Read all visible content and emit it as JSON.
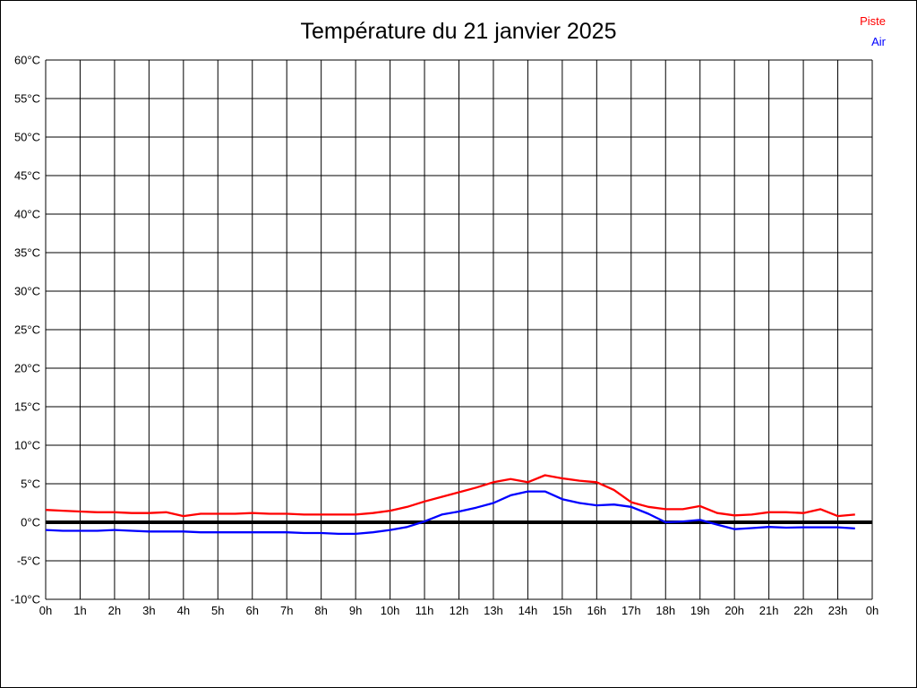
{
  "page": {
    "background": "#ffffff",
    "border_color": "#000000"
  },
  "title": "Température du 21 janvier 2025",
  "legend": {
    "position": "top-right",
    "items": [
      {
        "label": "Piste",
        "color": "#ff0000"
      },
      {
        "label": "Air",
        "color": "#0000ff"
      }
    ]
  },
  "chart_data": {
    "type": "line",
    "title": "Température du 21 janvier 2025",
    "xlabel": "",
    "ylabel": "",
    "x_unit": "hours",
    "y_unit": "°C",
    "xlim": [
      0,
      24
    ],
    "ylim": [
      -10,
      60
    ],
    "y_tick_step": 5,
    "grid": true,
    "grid_color": "#000000",
    "axis_color": "#000000",
    "zero_line": {
      "value": 0,
      "color": "#000000",
      "width": 4
    },
    "legend_position": "top-right",
    "x_tick_labels": [
      "0h",
      "1h",
      "2h",
      "3h",
      "4h",
      "5h",
      "6h",
      "7h",
      "8h",
      "9h",
      "10h",
      "11h",
      "12h",
      "13h",
      "14h",
      "15h",
      "16h",
      "17h",
      "18h",
      "19h",
      "20h",
      "21h",
      "22h",
      "23h",
      "0h"
    ],
    "y_tick_labels": [
      "60°C",
      "55°C",
      "50°C",
      "45°C",
      "40°C",
      "35°C",
      "30°C",
      "25°C",
      "20°C",
      "15°C",
      "10°C",
      "5°C",
      "0°C",
      "-5°C",
      "-10°C"
    ],
    "series": [
      {
        "name": "Piste",
        "color": "#ff0000",
        "line_width": 2.3,
        "x": [
          0,
          0.5,
          1,
          1.5,
          2,
          2.5,
          3,
          3.5,
          4,
          4.5,
          5,
          5.5,
          6,
          6.5,
          7,
          7.5,
          8,
          8.5,
          9,
          9.5,
          10,
          10.5,
          11,
          11.5,
          12,
          12.5,
          13,
          13.5,
          14,
          14.5,
          15,
          15.5,
          16,
          16.5,
          17,
          17.5,
          18,
          18.5,
          19,
          19.5,
          20,
          20.5,
          21,
          21.5,
          22,
          22.5,
          23,
          23.5
        ],
        "values": [
          1.6,
          1.5,
          1.4,
          1.3,
          1.3,
          1.2,
          1.2,
          1.3,
          0.8,
          1.1,
          1.1,
          1.1,
          1.2,
          1.1,
          1.1,
          1.0,
          1.0,
          1.0,
          1.0,
          1.2,
          1.5,
          2.0,
          2.7,
          3.3,
          3.9,
          4.5,
          5.2,
          5.6,
          5.2,
          6.1,
          5.7,
          5.4,
          5.2,
          4.2,
          2.6,
          2.0,
          1.7,
          1.7,
          2.1,
          1.2,
          0.9,
          1.0,
          1.3,
          1.3,
          1.2,
          1.7,
          0.8,
          1.0
        ]
      },
      {
        "name": "Air",
        "color": "#0000ff",
        "line_width": 2.3,
        "x": [
          0,
          0.5,
          1,
          1.5,
          2,
          2.5,
          3,
          3.5,
          4,
          4.5,
          5,
          5.5,
          6,
          6.5,
          7,
          7.5,
          8,
          8.5,
          9,
          9.5,
          10,
          10.5,
          11,
          11.5,
          12,
          12.5,
          13,
          13.5,
          14,
          14.5,
          15,
          15.5,
          16,
          16.5,
          17,
          17.5,
          18,
          18.5,
          19,
          19.5,
          20,
          20.5,
          21,
          21.5,
          22,
          22.5,
          23,
          23.5
        ],
        "values": [
          -1.0,
          -1.1,
          -1.1,
          -1.1,
          -1.0,
          -1.1,
          -1.2,
          -1.2,
          -1.2,
          -1.3,
          -1.3,
          -1.3,
          -1.3,
          -1.3,
          -1.3,
          -1.4,
          -1.4,
          -1.5,
          -1.5,
          -1.3,
          -1.0,
          -0.6,
          0.1,
          1.0,
          1.4,
          1.9,
          2.5,
          3.5,
          4.0,
          4.0,
          3.0,
          2.5,
          2.2,
          2.3,
          2.0,
          1.1,
          0.0,
          0.1,
          0.3,
          -0.3,
          -0.9,
          -0.75,
          -0.6,
          -0.7,
          -0.65,
          -0.65,
          -0.65,
          -0.8
        ]
      }
    ]
  }
}
